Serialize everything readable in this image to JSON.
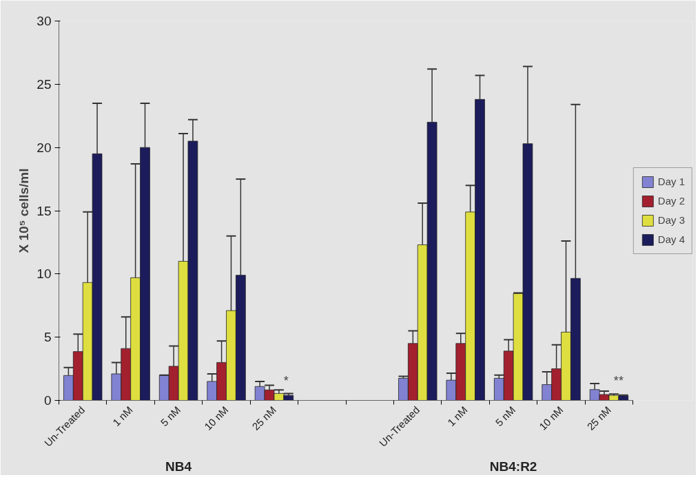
{
  "chart_data": {
    "type": "bar",
    "ylabel": "X 10⁵ cells/ml",
    "categories": [
      "Un-Treated",
      "1 nM",
      "5 nM",
      "10 nM",
      "25 nM",
      null,
      null,
      "Un-Treated",
      "1 nM",
      "5 nM",
      "10 nM",
      "25 nM"
    ],
    "series": [
      {
        "name": "Day 1",
        "color": "#8282d2",
        "values": [
          1.97,
          2.1,
          1.97,
          1.5,
          1.1,
          null,
          null,
          1.75,
          1.6,
          1.75,
          1.25,
          0.86
        ],
        "errors": [
          [
            1.97,
            2.6
          ],
          [
            2.1,
            3.0
          ],
          [
            1.97,
            2.0
          ],
          [
            1.5,
            2.1
          ],
          [
            1.1,
            1.5
          ],
          null,
          null,
          [
            1.75,
            1.9
          ],
          [
            1.6,
            2.15
          ],
          [
            1.75,
            2.0
          ],
          [
            1.25,
            2.26
          ],
          [
            0.86,
            1.34
          ]
        ]
      },
      {
        "name": "Day 2",
        "color": "#a3202f",
        "values": [
          3.86,
          4.1,
          2.7,
          3.0,
          0.83,
          null,
          null,
          4.5,
          4.5,
          3.9,
          2.5,
          0.46
        ],
        "errors": [
          [
            3.86,
            5.24
          ],
          [
            4.1,
            6.6
          ],
          [
            2.7,
            4.3
          ],
          [
            3.0,
            4.7
          ],
          [
            0.83,
            1.2
          ],
          null,
          null,
          [
            4.5,
            5.5
          ],
          [
            4.5,
            5.3
          ],
          [
            3.9,
            4.8
          ],
          [
            2.5,
            4.4
          ],
          [
            0.46,
            0.74
          ]
        ]
      },
      {
        "name": "Day 3",
        "color": "#dede40",
        "values": [
          9.32,
          9.7,
          11.0,
          7.1,
          0.55,
          null,
          null,
          12.3,
          14.9,
          8.45,
          5.4,
          0.4
        ],
        "errors": [
          [
            9.32,
            14.9
          ],
          [
            9.7,
            18.7
          ],
          [
            11.0,
            21.1
          ],
          [
            7.1,
            13.0
          ],
          [
            0.55,
            0.83
          ],
          null,
          null,
          [
            12.3,
            15.6
          ],
          [
            14.9,
            17.0
          ],
          [
            8.45,
            8.5
          ],
          [
            5.4,
            12.6
          ],
          [
            0.4,
            0.5
          ]
        ]
      },
      {
        "name": "Day 4",
        "color": "#1c1c5c",
        "values": [
          19.5,
          20.0,
          20.5,
          9.9,
          0.4,
          null,
          null,
          22.0,
          23.8,
          20.3,
          9.65,
          0.37
        ],
        "errors": [
          [
            19.5,
            23.5
          ],
          [
            20.0,
            23.5
          ],
          [
            20.5,
            22.2
          ],
          [
            9.9,
            17.5
          ],
          [
            0.4,
            0.55
          ],
          null,
          null,
          [
            22.0,
            26.2
          ],
          [
            23.8,
            25.7
          ],
          [
            20.3,
            26.4
          ],
          [
            9.65,
            23.4
          ],
          [
            0.37,
            0.42
          ]
        ]
      }
    ],
    "annotations": [
      "*",
      "**",
      "NB4",
      "NB4:R2"
    ],
    "ylim": [
      0,
      30
    ],
    "yticks": [
      0,
      5,
      10,
      15,
      20,
      25,
      30
    ],
    "legend": "right"
  }
}
